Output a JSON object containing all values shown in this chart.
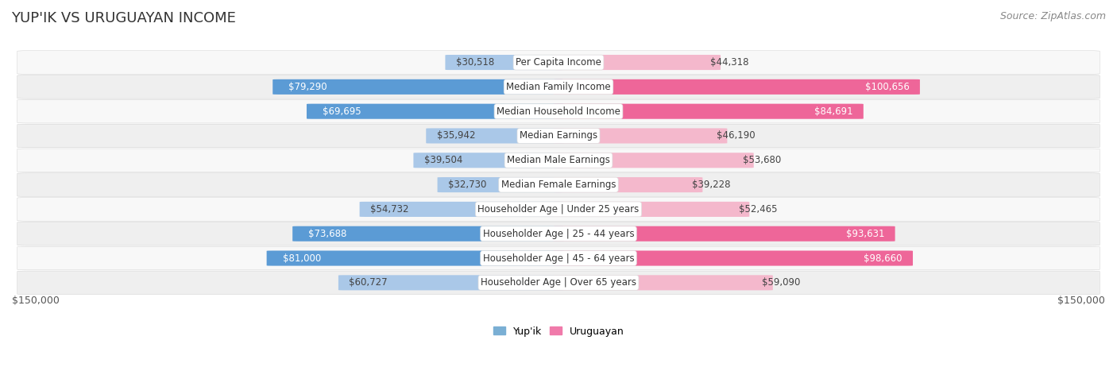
{
  "title": "YUP'IK VS URUGUAYAN INCOME",
  "source": "Source: ZipAtlas.com",
  "categories": [
    "Per Capita Income",
    "Median Family Income",
    "Median Household Income",
    "Median Earnings",
    "Median Male Earnings",
    "Median Female Earnings",
    "Householder Age | Under 25 years",
    "Householder Age | 25 - 44 years",
    "Householder Age | 45 - 64 years",
    "Householder Age | Over 65 years"
  ],
  "yupik_values": [
    30518,
    79290,
    69695,
    35942,
    39504,
    32730,
    54732,
    73688,
    81000,
    60727
  ],
  "uruguayan_values": [
    44318,
    100656,
    84691,
    46190,
    53680,
    39228,
    52465,
    93631,
    98660,
    59090
  ],
  "yupik_labels": [
    "$30,518",
    "$79,290",
    "$69,695",
    "$35,942",
    "$39,504",
    "$32,730",
    "$54,732",
    "$73,688",
    "$81,000",
    "$60,727"
  ],
  "uruguayan_labels": [
    "$44,318",
    "$100,656",
    "$84,691",
    "$46,190",
    "$53,680",
    "$39,228",
    "$52,465",
    "$93,631",
    "$98,660",
    "$59,090"
  ],
  "yupik_color_light": "#aac8e8",
  "yupik_color_mid": "#7aafd4",
  "yupik_color_strong": "#5b9bd5",
  "uruguayan_color_light": "#f4b8cc",
  "uruguayan_color_mid": "#f07aaa",
  "uruguayan_color_strong": "#ee6699",
  "row_bg_light": "#f8f8f8",
  "row_bg_dark": "#efefef",
  "max_value": 150000,
  "x_label_left": "$150,000",
  "x_label_right": "$150,000",
  "legend_yupik": "Yup'ik",
  "legend_uruguayan": "Uruguayan",
  "title_fontsize": 13,
  "source_fontsize": 9,
  "bar_label_fontsize": 8.5,
  "category_fontsize": 8.5,
  "yupik_strong_threshold": 65000,
  "uruguayan_strong_threshold": 80000
}
